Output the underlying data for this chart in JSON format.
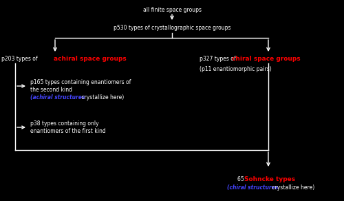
{
  "bg_color": "#000000",
  "text_color": "#ffffff",
  "red_color": "#ff0000",
  "blue_color": "#4444ff",
  "title": "all finite space groups",
  "level1": "p530 types of crystallographic space groups",
  "left_title_plain": "p203 types of ",
  "left_title_red": "achiral space groups",
  "right_title_plain": "p327 types of ",
  "right_title_red": "chiral space groups",
  "right_subtitle": "(p11 enantiomorphic pairs)",
  "sub1_line1": "p165 types containing enantiomers of",
  "sub1_line2": "the second kind",
  "sub1_blue": "(achiral structures",
  "sub1_plain2": " crystallize here)",
  "sub2_line1": "p38 types containing only",
  "sub2_line2": "enantiomers of the first kind",
  "bottom_plain": "65 ",
  "bottom_red": "Sohncke types",
  "bottom_blue": "(chiral structures",
  "bottom_plain2": " crystallize here)"
}
